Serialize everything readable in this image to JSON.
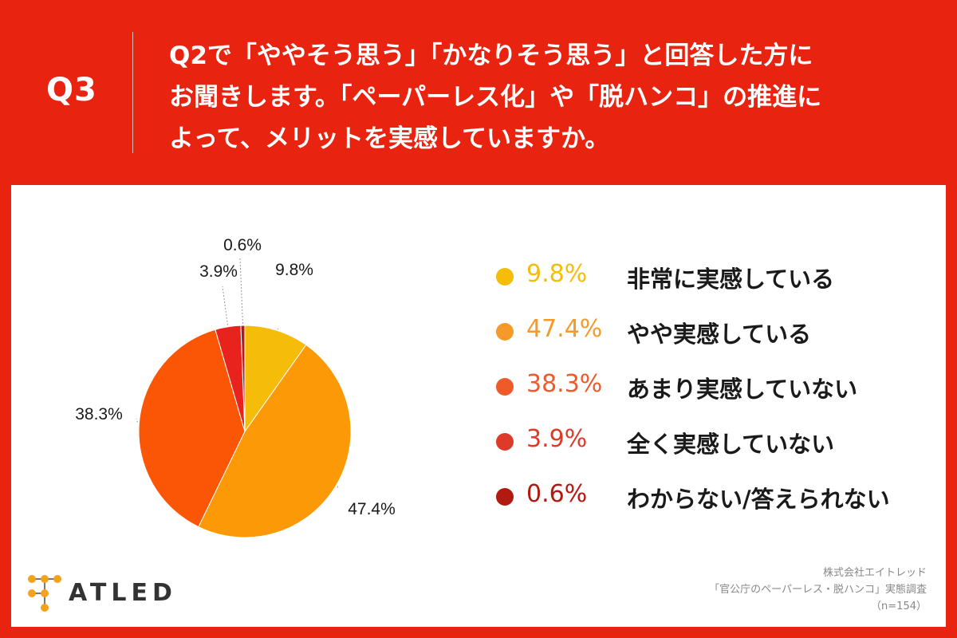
{
  "header": {
    "qnum": "Q3",
    "question_lines": [
      "Q2で「ややそう思う」「かなりそう思う」と回答した方に",
      "お聞きします。「ペーパーレス化」や「脱ハンコ」の推進に",
      "よって、メリットを実感していますか。"
    ]
  },
  "chart_data": {
    "type": "pie",
    "categories": [
      "非常に実感している",
      "やや実感している",
      "あまり実感していない",
      "全く実感していない",
      "わからない/答えられない"
    ],
    "values": [
      9.8,
      47.4,
      38.3,
      3.9,
      0.6
    ],
    "value_labels": [
      "9.8%",
      "47.4%",
      "38.3%",
      "3.9%",
      "0.6%"
    ],
    "colors": [
      "#f5bd0a",
      "#fb9a06",
      "#fb5606",
      "#e8231d",
      "#b21911"
    ],
    "legend_colors": [
      "#f5bd0a",
      "#f59a2a",
      "#ee5a2a",
      "#de3a2a",
      "#b21911"
    ],
    "legend_position": "right"
  },
  "logo": {
    "text": "ATLED"
  },
  "credit": {
    "company": "株式会社エイトレッド",
    "survey": "「官公庁のペーパーレス・脱ハンコ」実態調査",
    "sample": "（n=154）"
  },
  "colors": {
    "background": "#e8230f",
    "panel": "#ffffff",
    "logo_dot": "#f4a21c"
  }
}
